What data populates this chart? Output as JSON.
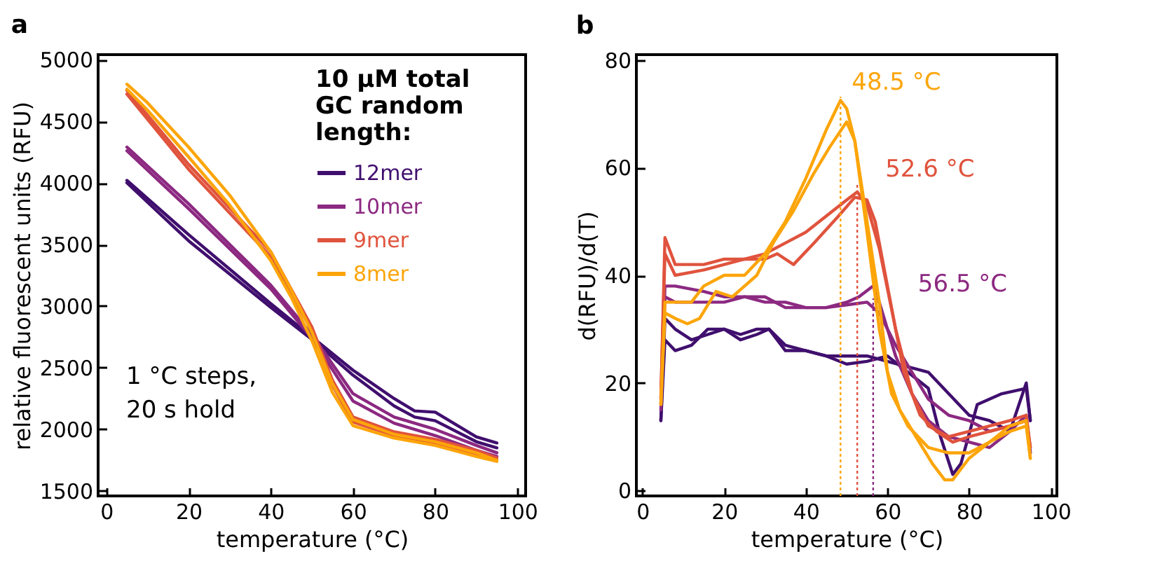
{
  "chart_data": [
    {
      "type": "line",
      "title": "a",
      "xlabel": "temperature (°C)",
      "ylabel": "relative fluorescent units (RFU)",
      "legend_title": "10 µM total\nGC random\nlength:",
      "legend": "top right",
      "grid": false,
      "xlim": [
        -2,
        102
      ],
      "xticks": [
        0,
        20,
        40,
        60,
        80,
        100
      ],
      "ylim": [
        1460,
        5040
      ],
      "yticks": [
        1500,
        2000,
        2500,
        3000,
        3500,
        4000,
        4500,
        5000
      ],
      "annotations": [
        "1 °C steps,\n20 s hold"
      ],
      "series": [
        {
          "name": "12mer",
          "color": "#400f6e",
          "x": [
            5,
            20,
            40,
            50,
            60,
            70,
            75,
            80,
            90,
            95
          ],
          "values": [
            4020,
            3580,
            3020,
            2750,
            2480,
            2250,
            2150,
            2140,
            1940,
            1890
          ]
        },
        {
          "color": "#400f6e",
          "x": [
            5,
            20,
            40,
            50,
            60,
            70,
            75,
            80,
            90,
            95
          ],
          "values": [
            4000,
            3530,
            2990,
            2730,
            2440,
            2190,
            2100,
            2070,
            1900,
            1850
          ]
        },
        {
          "name": "10mer",
          "color": "#8c2981",
          "x": [
            5,
            20,
            40,
            50,
            60,
            70,
            80,
            90,
            95
          ],
          "values": [
            4290,
            3830,
            3170,
            2770,
            2290,
            2100,
            2000,
            1870,
            1810
          ]
        },
        {
          "color": "#8c2981",
          "x": [
            5,
            20,
            40,
            50,
            60,
            70,
            80,
            90,
            95
          ],
          "values": [
            4260,
            3790,
            3140,
            2740,
            2230,
            2050,
            1950,
            1830,
            1780
          ]
        },
        {
          "name": "9mer",
          "color": "#e0533d",
          "x": [
            5,
            20,
            40,
            50,
            55,
            60,
            70,
            80,
            90,
            95
          ],
          "values": [
            4750,
            4150,
            3440,
            2830,
            2400,
            2100,
            1980,
            1920,
            1830,
            1770
          ]
        },
        {
          "color": "#e0533d",
          "x": [
            5,
            20,
            40,
            50,
            55,
            60,
            70,
            80,
            90,
            95
          ],
          "values": [
            4720,
            4110,
            3400,
            2800,
            2360,
            2060,
            1950,
            1890,
            1800,
            1750
          ]
        },
        {
          "name": "8mer",
          "color": "#fca50a",
          "x": [
            5,
            10,
            20,
            30,
            40,
            45,
            50,
            55,
            60,
            70,
            80,
            90,
            95
          ],
          "values": [
            4800,
            4650,
            4290,
            3900,
            3440,
            3130,
            2790,
            2370,
            2080,
            1960,
            1900,
            1810,
            1750
          ]
        },
        {
          "color": "#fca50a",
          "x": [
            5,
            10,
            20,
            30,
            40,
            45,
            50,
            55,
            60,
            70,
            80,
            90,
            95
          ],
          "values": [
            4760,
            4590,
            4210,
            3820,
            3370,
            3070,
            2720,
            2300,
            2030,
            1930,
            1870,
            1780,
            1740
          ]
        }
      ]
    },
    {
      "type": "line",
      "title": "b",
      "xlabel": "temperature (°C)",
      "ylabel": "d(RFU)/d(T)",
      "grid": false,
      "xlim": [
        -1.5,
        101.5
      ],
      "xticks": [
        0,
        20,
        40,
        60,
        80,
        100
      ],
      "ylim": [
        -1,
        81
      ],
      "yticks": [
        0,
        20,
        40,
        60,
        80
      ],
      "annotations": [
        "48.5 °C",
        "52.6 °C",
        "56.5 °C"
      ],
      "ref_lines": [
        {
          "axis": "x",
          "value": 48.5,
          "color": "#fca50a",
          "line_style": "dotted"
        },
        {
          "axis": "x",
          "value": 52.6,
          "color": "#e0533d",
          "line_style": "dotted"
        },
        {
          "axis": "x",
          "value": 56.5,
          "color": "#8c2981",
          "line_style": "dotted"
        }
      ],
      "series": [
        {
          "color": "#400f6e",
          "x": [
            4.5,
            5.5,
            8,
            12,
            16,
            20,
            24,
            28,
            31,
            35,
            40,
            45,
            50,
            55,
            60,
            65,
            70,
            73,
            76,
            78,
            82,
            88,
            94,
            95
          ],
          "values": [
            13,
            32,
            30,
            28,
            29,
            30,
            28,
            29,
            30,
            27,
            26,
            25,
            23.5,
            24,
            25,
            22,
            19,
            10,
            3,
            5,
            16,
            18,
            19,
            13
          ]
        },
        {
          "color": "#400f6e",
          "x": [
            4.5,
            5.5,
            8,
            12,
            16,
            20,
            24,
            28,
            31,
            35,
            40,
            45,
            50,
            55,
            60,
            65,
            70,
            75,
            80,
            85,
            90,
            94,
            95
          ],
          "values": [
            13,
            28,
            26,
            27,
            30,
            30,
            29,
            30,
            30,
            26,
            26,
            25,
            25,
            25,
            24,
            23,
            22,
            18,
            14,
            13,
            11,
            20,
            13
          ]
        },
        {
          "color": "#8c2981",
          "x": [
            4.5,
            5.5,
            8,
            15,
            20,
            25,
            30,
            35,
            40,
            45,
            50,
            53,
            56.5,
            58,
            62,
            66,
            70,
            75,
            80,
            85,
            90,
            94,
            95
          ],
          "values": [
            16,
            38,
            38,
            37,
            36,
            36,
            36,
            34,
            34,
            34,
            35,
            36,
            38,
            35,
            25,
            18,
            13,
            10,
            9,
            8,
            11,
            14,
            7
          ]
        },
        {
          "color": "#8c2981",
          "x": [
            4.5,
            5.5,
            8,
            15,
            20,
            25,
            30,
            35,
            40,
            45,
            50,
            55,
            58,
            62,
            66,
            70,
            75,
            80,
            85,
            90,
            94,
            95
          ],
          "values": [
            15,
            36,
            35,
            35,
            35,
            36,
            35,
            35,
            34,
            34,
            34.5,
            35,
            33,
            27,
            22,
            17,
            14,
            13,
            11,
            12,
            13,
            7
          ]
        },
        {
          "color": "#e0533d",
          "x": [
            4.5,
            5.5,
            8,
            15,
            20,
            25,
            30,
            35,
            40,
            45,
            50,
            52.6,
            55,
            58,
            62,
            66,
            70,
            75,
            80,
            85,
            90,
            94,
            95
          ],
          "values": [
            17,
            47,
            42,
            42,
            43,
            43,
            44,
            46,
            48,
            51,
            54,
            55.5,
            53,
            45,
            30,
            18,
            12,
            10,
            11,
            12,
            13,
            14,
            8
          ]
        },
        {
          "color": "#e0533d",
          "x": [
            4.5,
            5.5,
            8,
            15,
            20,
            25,
            30,
            33,
            37,
            42,
            48,
            52,
            55,
            57,
            60,
            64,
            68,
            72,
            76,
            80,
            85,
            90,
            94,
            95
          ],
          "values": [
            17,
            44,
            40,
            41,
            42,
            43,
            43,
            44,
            42,
            46,
            51,
            54.5,
            54,
            50,
            38,
            22,
            14,
            11,
            9,
            10,
            11,
            12,
            13,
            8
          ]
        },
        {
          "color": "#fca50a",
          "x": [
            4.5,
            5.5,
            8,
            12,
            15,
            20,
            25,
            30,
            35,
            40,
            45,
            48.5,
            50,
            52,
            55,
            58,
            60,
            63,
            67,
            71,
            74,
            76,
            80,
            85,
            90,
            94,
            95
          ],
          "values": [
            16,
            35,
            35,
            35,
            38,
            40,
            40,
            44,
            50,
            58,
            67,
            72.5,
            71,
            65,
            50,
            35,
            22,
            15,
            10,
            5,
            2,
            2,
            6,
            9,
            12,
            13,
            6
          ]
        },
        {
          "color": "#fca50a",
          "x": [
            4.5,
            5.5,
            8,
            11,
            14,
            18,
            22,
            25,
            28,
            32,
            37,
            42,
            46,
            50,
            52,
            55,
            58,
            61,
            65,
            70,
            75,
            80,
            85,
            90,
            94,
            95
          ],
          "values": [
            16,
            33,
            32,
            31,
            32,
            37,
            36,
            38,
            40,
            46,
            52,
            59,
            64,
            68.5,
            65,
            48,
            30,
            18,
            12,
            8,
            7,
            7,
            9,
            11,
            12,
            6
          ]
        }
      ]
    }
  ]
}
